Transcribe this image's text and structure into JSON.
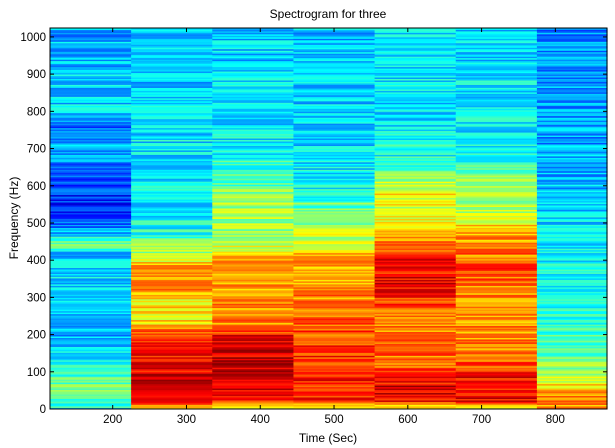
{
  "chart_data": {
    "type": "heatmap",
    "title": "Spectrogram for three",
    "xlabel": "Time (Sec)",
    "ylabel": "Frequency (Hz)",
    "xlim": [
      115,
      870
    ],
    "ylim": [
      0,
      1024
    ],
    "x_ticks": [
      200,
      300,
      400,
      500,
      600,
      700,
      800
    ],
    "y_ticks": [
      0,
      100,
      200,
      300,
      400,
      500,
      600,
      700,
      800,
      900,
      1000
    ],
    "grid": false,
    "colormap": "jet",
    "value_range": [
      0,
      1
    ],
    "time_frames": [
      {
        "x_start": 115,
        "x_end": 225,
        "levels": [
          [
            0,
            0.4
          ],
          [
            25,
            0.42
          ],
          [
            60,
            0.52
          ],
          [
            100,
            0.4
          ],
          [
            150,
            0.34
          ],
          [
            200,
            0.3
          ],
          [
            260,
            0.3
          ],
          [
            330,
            0.34
          ],
          [
            420,
            0.33
          ],
          [
            440,
            0.52
          ],
          [
            470,
            0.33
          ],
          [
            500,
            0.2
          ],
          [
            560,
            0.16
          ],
          [
            640,
            0.2
          ],
          [
            700,
            0.3
          ],
          [
            760,
            0.24
          ],
          [
            800,
            0.34
          ],
          [
            870,
            0.33
          ],
          [
            950,
            0.3
          ],
          [
            1024,
            0.3
          ]
        ]
      },
      {
        "x_start": 225,
        "x_end": 335,
        "levels": [
          [
            0,
            0.6
          ],
          [
            25,
            0.88
          ],
          [
            80,
            0.9
          ],
          [
            150,
            0.86
          ],
          [
            200,
            0.82
          ],
          [
            230,
            0.66
          ],
          [
            290,
            0.64
          ],
          [
            330,
            0.74
          ],
          [
            380,
            0.76
          ],
          [
            410,
            0.55
          ],
          [
            440,
            0.52
          ],
          [
            470,
            0.4
          ],
          [
            560,
            0.36
          ],
          [
            700,
            0.36
          ],
          [
            850,
            0.33
          ],
          [
            1024,
            0.32
          ]
        ]
      },
      {
        "x_start": 335,
        "x_end": 445,
        "levels": [
          [
            0,
            0.58
          ],
          [
            25,
            0.9
          ],
          [
            120,
            0.93
          ],
          [
            190,
            0.9
          ],
          [
            230,
            0.74
          ],
          [
            300,
            0.72
          ],
          [
            380,
            0.74
          ],
          [
            420,
            0.64
          ],
          [
            470,
            0.52
          ],
          [
            560,
            0.56
          ],
          [
            600,
            0.45
          ],
          [
            700,
            0.38
          ],
          [
            850,
            0.34
          ],
          [
            1024,
            0.33
          ]
        ]
      },
      {
        "x_start": 445,
        "x_end": 555,
        "levels": [
          [
            0,
            0.62
          ],
          [
            25,
            0.86
          ],
          [
            180,
            0.82
          ],
          [
            230,
            0.78
          ],
          [
            320,
            0.74
          ],
          [
            400,
            0.72
          ],
          [
            480,
            0.54
          ],
          [
            540,
            0.48
          ],
          [
            600,
            0.38
          ],
          [
            700,
            0.34
          ],
          [
            1024,
            0.32
          ]
        ]
      },
      {
        "x_start": 555,
        "x_end": 665,
        "levels": [
          [
            0,
            0.6
          ],
          [
            25,
            0.88
          ],
          [
            60,
            0.9
          ],
          [
            120,
            0.78
          ],
          [
            230,
            0.74
          ],
          [
            280,
            0.82
          ],
          [
            340,
            0.88
          ],
          [
            410,
            0.86
          ],
          [
            460,
            0.72
          ],
          [
            520,
            0.6
          ],
          [
            580,
            0.62
          ],
          [
            660,
            0.4
          ],
          [
            760,
            0.36
          ],
          [
            1024,
            0.34
          ]
        ]
      },
      {
        "x_start": 665,
        "x_end": 775,
        "levels": [
          [
            0,
            0.62
          ],
          [
            25,
            0.9
          ],
          [
            80,
            0.88
          ],
          [
            130,
            0.76
          ],
          [
            230,
            0.74
          ],
          [
            300,
            0.72
          ],
          [
            380,
            0.8
          ],
          [
            470,
            0.7
          ],
          [
            540,
            0.55
          ],
          [
            620,
            0.56
          ],
          [
            660,
            0.4
          ],
          [
            760,
            0.36
          ],
          [
            1024,
            0.34
          ]
        ]
      },
      {
        "x_start": 775,
        "x_end": 870,
        "levels": [
          [
            0,
            0.7
          ],
          [
            25,
            0.74
          ],
          [
            90,
            0.58
          ],
          [
            150,
            0.46
          ],
          [
            230,
            0.4
          ],
          [
            340,
            0.38
          ],
          [
            460,
            0.36
          ],
          [
            540,
            0.32
          ],
          [
            640,
            0.3
          ],
          [
            750,
            0.28
          ],
          [
            1024,
            0.27
          ]
        ]
      }
    ]
  }
}
